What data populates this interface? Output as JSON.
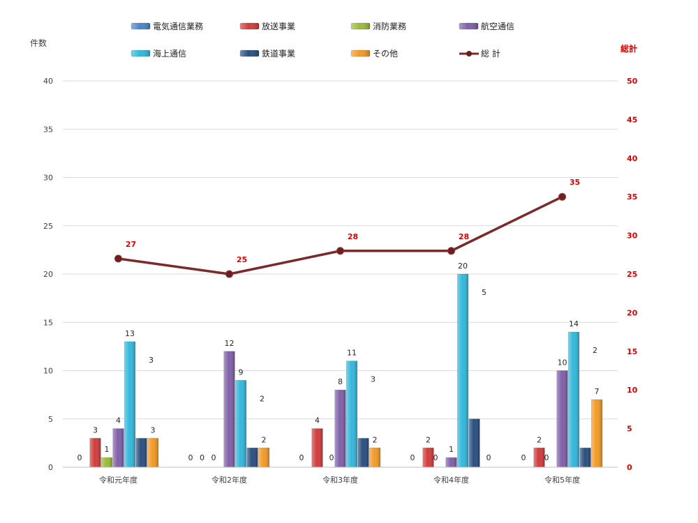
{
  "chart_data": {
    "type": "bar",
    "categories": [
      "令和元年度",
      "令和2年度",
      "令和3年度",
      "令和4年度",
      "令和5年度"
    ],
    "ylabel": "件数",
    "ylim": [
      0,
      40
    ],
    "yticks": [
      0,
      5,
      10,
      15,
      20,
      25,
      30,
      35,
      40
    ],
    "y2label": "総計",
    "y2lim": [
      0,
      50
    ],
    "y2ticks": [
      0,
      5,
      10,
      15,
      20,
      25,
      30,
      35,
      40,
      45,
      50
    ],
    "grid": true,
    "legend_position": "top",
    "series": [
      {
        "name": "電気通信業務",
        "values": [
          0,
          0,
          0,
          0,
          0
        ],
        "color": "#4a86c8"
      },
      {
        "name": "放送事業",
        "values": [
          3,
          0,
          4,
          2,
          2
        ],
        "color": "#d23c3c"
      },
      {
        "name": "消防業務",
        "values": [
          1,
          0,
          0,
          0,
          0
        ],
        "color": "#9bbb3a"
      },
      {
        "name": "航空通信",
        "values": [
          4,
          12,
          8,
          1,
          10
        ],
        "color": "#8060a8"
      },
      {
        "name": "海上通信",
        "values": [
          13,
          9,
          11,
          20,
          14
        ],
        "color": "#34b8dc"
      },
      {
        "name": "鉄道事業",
        "values": [
          3,
          2,
          3,
          5,
          2
        ],
        "color": "#2a4f80"
      },
      {
        "name": "その他",
        "values": [
          3,
          2,
          2,
          0,
          7
        ],
        "color": "#f39a28"
      }
    ],
    "total": {
      "name": "総 計",
      "axis": "right",
      "values": [
        27,
        25,
        28,
        28,
        35
      ],
      "color": "#7a2a2a"
    }
  }
}
